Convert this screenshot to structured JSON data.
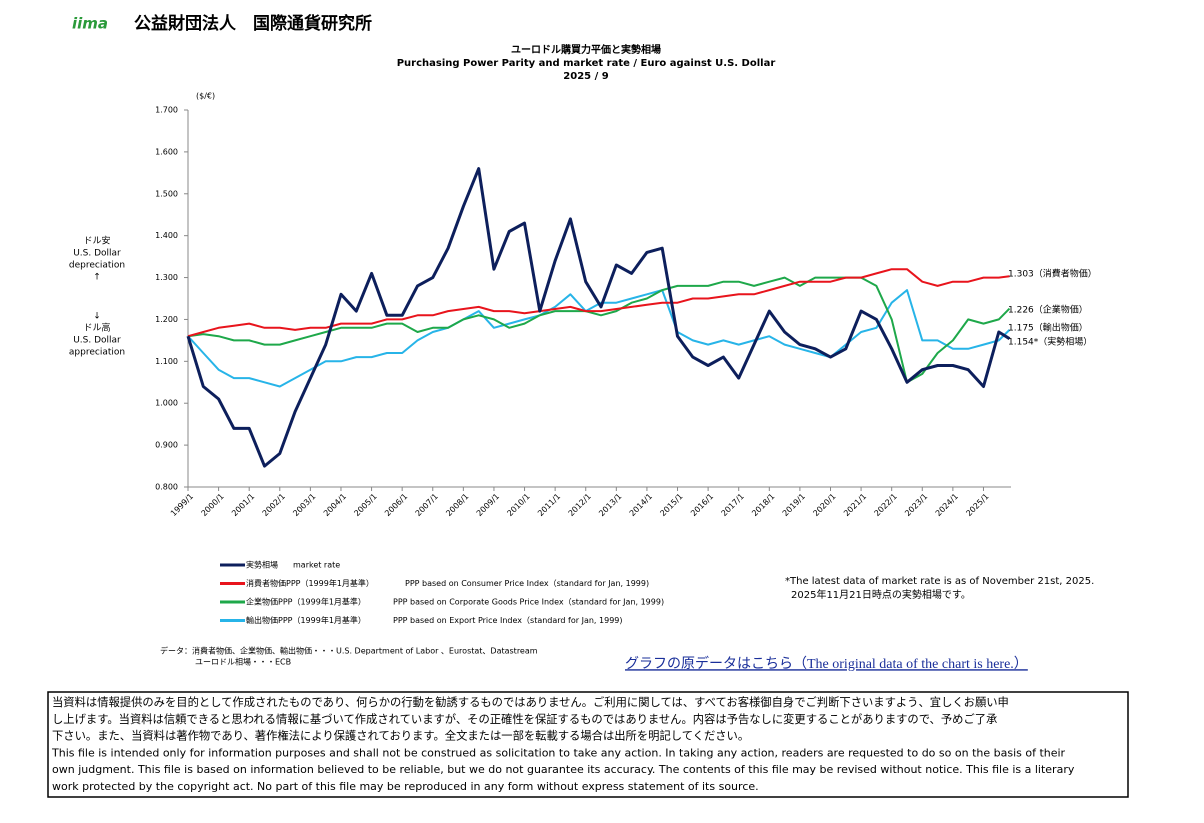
{
  "header": {
    "logo": "iima",
    "org": "公益財団法人　国際通貨研究所"
  },
  "chart_data": {
    "type": "line",
    "title": "ユーロドル購買力平価と実勢相場",
    "subtitle": "Purchasing Power Parity and market rate / Euro against  U.S. Dollar",
    "date": "2025 / 9",
    "y_unit": "($/€)",
    "upper_note": [
      "ドル安",
      "U.S. Dollar",
      "depreciation",
      "↑"
    ],
    "lower_note": [
      "↓",
      "ドル高",
      "U.S. Dollar",
      "appreciation"
    ],
    "xlim": [
      1999,
      2025.9
    ],
    "xticks": [
      {
        "value": 1999,
        "label": "1999/1"
      },
      {
        "value": 2000,
        "label": "2000/1"
      },
      {
        "value": 2001,
        "label": "2001/1"
      },
      {
        "value": 2002,
        "label": "2002/1"
      },
      {
        "value": 2003,
        "label": "2003/1"
      },
      {
        "value": 2004,
        "label": "2004/1"
      },
      {
        "value": 2005,
        "label": "2005/1"
      },
      {
        "value": 2006,
        "label": "2006/1"
      },
      {
        "value": 2007,
        "label": "2007/1"
      },
      {
        "value": 2008,
        "label": "2008/1"
      },
      {
        "value": 2009,
        "label": "2009/1"
      },
      {
        "value": 2010,
        "label": "2010/1"
      },
      {
        "value": 2011,
        "label": "2011/1"
      },
      {
        "value": 2012,
        "label": "2012/1"
      },
      {
        "value": 2013,
        "label": "2013/1"
      },
      {
        "value": 2014,
        "label": "2014/1"
      },
      {
        "value": 2015,
        "label": "2015/1"
      },
      {
        "value": 2016,
        "label": "2016/1"
      },
      {
        "value": 2017,
        "label": "2017/1"
      },
      {
        "value": 2018,
        "label": "2018/1"
      },
      {
        "value": 2019,
        "label": "2019/1"
      },
      {
        "value": 2020,
        "label": "2020/1"
      },
      {
        "value": 2021,
        "label": "2021/1"
      },
      {
        "value": 2022,
        "label": "2022/1"
      },
      {
        "value": 2023,
        "label": "2023/1"
      },
      {
        "value": 2024,
        "label": "2024/1"
      },
      {
        "value": 2025,
        "label": "2025/1"
      }
    ],
    "ylim": [
      0.8,
      1.7
    ],
    "yticks": [
      {
        "value": 0.8,
        "label": "0.800"
      },
      {
        "value": 0.9,
        "label": "0.900"
      },
      {
        "value": 1,
        "label": "1.000"
      },
      {
        "value": 1.1,
        "label": "1.100"
      },
      {
        "value": 1.2,
        "label": "1.200"
      },
      {
        "value": 1.3,
        "label": "1.300"
      },
      {
        "value": 1.4,
        "label": "1.400"
      },
      {
        "value": 1.5,
        "label": "1.500"
      },
      {
        "value": 1.6,
        "label": "1.600"
      },
      {
        "value": 1.7,
        "label": "1.700"
      }
    ],
    "x": [
      1999,
      1999.5,
      2000,
      2000.5,
      2001,
      2001.5,
      2002,
      2002.5,
      2003,
      2003.5,
      2004,
      2004.5,
      2005,
      2005.5,
      2006,
      2006.5,
      2007,
      2007.5,
      2008,
      2008.5,
      2009,
      2009.5,
      2010,
      2010.5,
      2011,
      2011.5,
      2012,
      2012.5,
      2013,
      2013.5,
      2014,
      2014.5,
      2015,
      2015.5,
      2016,
      2016.5,
      2017,
      2017.5,
      2018,
      2018.5,
      2019,
      2019.5,
      2020,
      2020.5,
      2021,
      2021.5,
      2022,
      2022.5,
      2023,
      2023.5,
      2024,
      2024.5,
      2025,
      2025.5,
      2025.85
    ],
    "series": [
      {
        "name": "実勢相場",
        "description": "market rate",
        "color": "#0d1f5c",
        "width": 3,
        "end_label": "1.154*（実勢相場）",
        "values": [
          1.16,
          1.04,
          1.01,
          0.94,
          0.94,
          0.85,
          0.88,
          0.98,
          1.06,
          1.14,
          1.26,
          1.22,
          1.31,
          1.21,
          1.21,
          1.28,
          1.3,
          1.37,
          1.47,
          1.56,
          1.32,
          1.41,
          1.43,
          1.22,
          1.34,
          1.44,
          1.29,
          1.23,
          1.33,
          1.31,
          1.36,
          1.37,
          1.16,
          1.11,
          1.09,
          1.11,
          1.06,
          1.14,
          1.22,
          1.17,
          1.14,
          1.13,
          1.11,
          1.13,
          1.22,
          1.2,
          1.13,
          1.05,
          1.08,
          1.09,
          1.09,
          1.08,
          1.04,
          1.17,
          1.154
        ]
      },
      {
        "name": "消費者物価PPP（1999年1月基準）",
        "description": "PPP based on Consumer Price Index（standard for Jan, 1999)",
        "color": "#e8141c",
        "width": 2,
        "end_label": "1.303（消費者物価）",
        "values": [
          1.16,
          1.17,
          1.18,
          1.185,
          1.19,
          1.18,
          1.18,
          1.175,
          1.18,
          1.18,
          1.19,
          1.19,
          1.19,
          1.2,
          1.2,
          1.21,
          1.21,
          1.22,
          1.225,
          1.23,
          1.22,
          1.22,
          1.215,
          1.22,
          1.225,
          1.23,
          1.22,
          1.22,
          1.225,
          1.23,
          1.235,
          1.24,
          1.24,
          1.25,
          1.25,
          1.255,
          1.26,
          1.26,
          1.27,
          1.28,
          1.29,
          1.29,
          1.29,
          1.3,
          1.3,
          1.31,
          1.32,
          1.32,
          1.29,
          1.28,
          1.29,
          1.29,
          1.3,
          1.3,
          1.303
        ]
      },
      {
        "name": "企業物価PPP（1999年1月基準）",
        "description": "PPP based on Corporate Goods Price Index（standard for Jan, 1999)",
        "color": "#1ea84a",
        "width": 2,
        "end_label": "1.226（企業物価）",
        "values": [
          1.16,
          1.165,
          1.16,
          1.15,
          1.15,
          1.14,
          1.14,
          1.15,
          1.16,
          1.17,
          1.18,
          1.18,
          1.18,
          1.19,
          1.19,
          1.17,
          1.18,
          1.18,
          1.2,
          1.21,
          1.2,
          1.18,
          1.19,
          1.21,
          1.22,
          1.22,
          1.22,
          1.21,
          1.22,
          1.24,
          1.25,
          1.27,
          1.28,
          1.28,
          1.28,
          1.29,
          1.29,
          1.28,
          1.29,
          1.3,
          1.28,
          1.3,
          1.3,
          1.3,
          1.3,
          1.28,
          1.2,
          1.05,
          1.07,
          1.12,
          1.15,
          1.2,
          1.19,
          1.2,
          1.226
        ]
      },
      {
        "name": "輸出物価PPP（1999年1月基準）",
        "description": "PPP based on Export Price Index（standard for Jan, 1999)",
        "color": "#27b4e8",
        "width": 2,
        "end_label": "1.175（輸出物価）",
        "values": [
          1.16,
          1.12,
          1.08,
          1.06,
          1.06,
          1.05,
          1.04,
          1.06,
          1.08,
          1.1,
          1.1,
          1.11,
          1.11,
          1.12,
          1.12,
          1.15,
          1.17,
          1.18,
          1.2,
          1.22,
          1.18,
          1.19,
          1.2,
          1.21,
          1.23,
          1.26,
          1.22,
          1.24,
          1.24,
          1.25,
          1.26,
          1.27,
          1.17,
          1.15,
          1.14,
          1.15,
          1.14,
          1.15,
          1.16,
          1.14,
          1.13,
          1.12,
          1.11,
          1.14,
          1.17,
          1.18,
          1.24,
          1.27,
          1.15,
          1.15,
          1.13,
          1.13,
          1.14,
          1.15,
          1.175
        ]
      }
    ],
    "note": [
      "*The latest data of market rate is as of November 21st, 2025.",
      "2025年11月21日時点の実勢相場です。"
    ],
    "source": [
      "データ：消費者物価、企業物価、輸出物価・・・U.S. Department of Labor 、Eurostat、Datastream",
      "ユーロドル相場・・・ECB"
    ]
  },
  "link": "グラフの原データはこちら（The original data of the chart is here.）",
  "disclaimer": [
    "当資料は情報提供のみを目的として作成されたものであり、何らかの行動を勧誘するものではありません。ご利用に関しては、すべてお客様御自身でご判断下さいますよう、宜しくお願い申",
    "し上げます。当資料は信頼できると思われる情報に基づいて作成されていますが、その正確性を保証するものではありません。内容は予告なしに変更することがありますので、予めご了承",
    "下さい。また、当資料は著作物であり、著作権法により保護されております。全文または一部を転載する場合は出所を明記してください。",
    "This file is intended only for information purposes and shall not be construed as solicitation to take any action. In taking any action, readers are requested to do so on the basis of their",
    "own judgment. This file is based on information believed to be reliable, but we do not guarantee its accuracy. The contents of this file may be revised without notice. This file is a literary",
    "work protected by the copyright act. No part of this file may be reproduced in any form without express statement of its source."
  ]
}
